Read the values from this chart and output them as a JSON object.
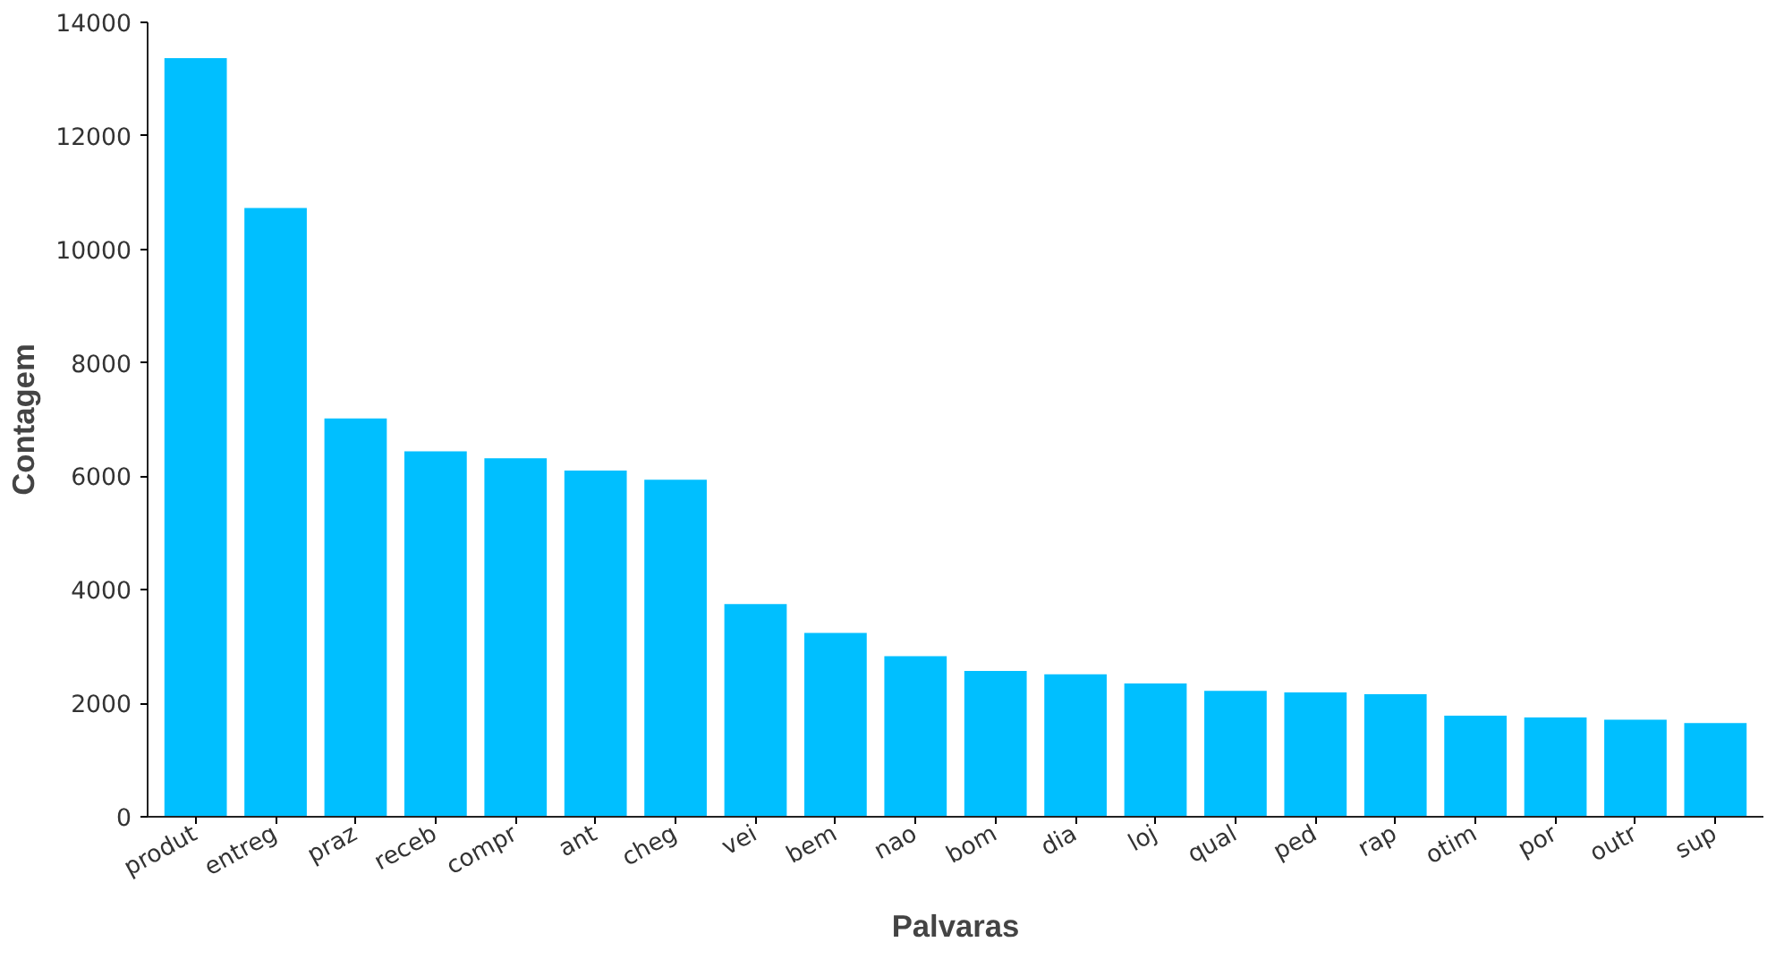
{
  "chart_data": {
    "type": "bar",
    "xlabel": "Palvaras",
    "ylabel": "Contagem",
    "categories": [
      "produt",
      "entreg",
      "praz",
      "receb",
      "compr",
      "ant",
      "cheg",
      "vei",
      "bem",
      "nao",
      "bom",
      "dia",
      "loj",
      "qual",
      "ped",
      "rap",
      "otim",
      "por",
      "outr",
      "sup"
    ],
    "values": [
      13370,
      10730,
      7020,
      6440,
      6320,
      6100,
      5940,
      3750,
      3240,
      2830,
      2570,
      2510,
      2350,
      2220,
      2190,
      2160,
      1780,
      1750,
      1710,
      1650
    ],
    "color": "#00bfff",
    "ylim": [
      0,
      14000
    ],
    "yticks": [
      0,
      2000,
      4000,
      6000,
      8000,
      10000,
      12000,
      14000
    ],
    "grid": false
  }
}
